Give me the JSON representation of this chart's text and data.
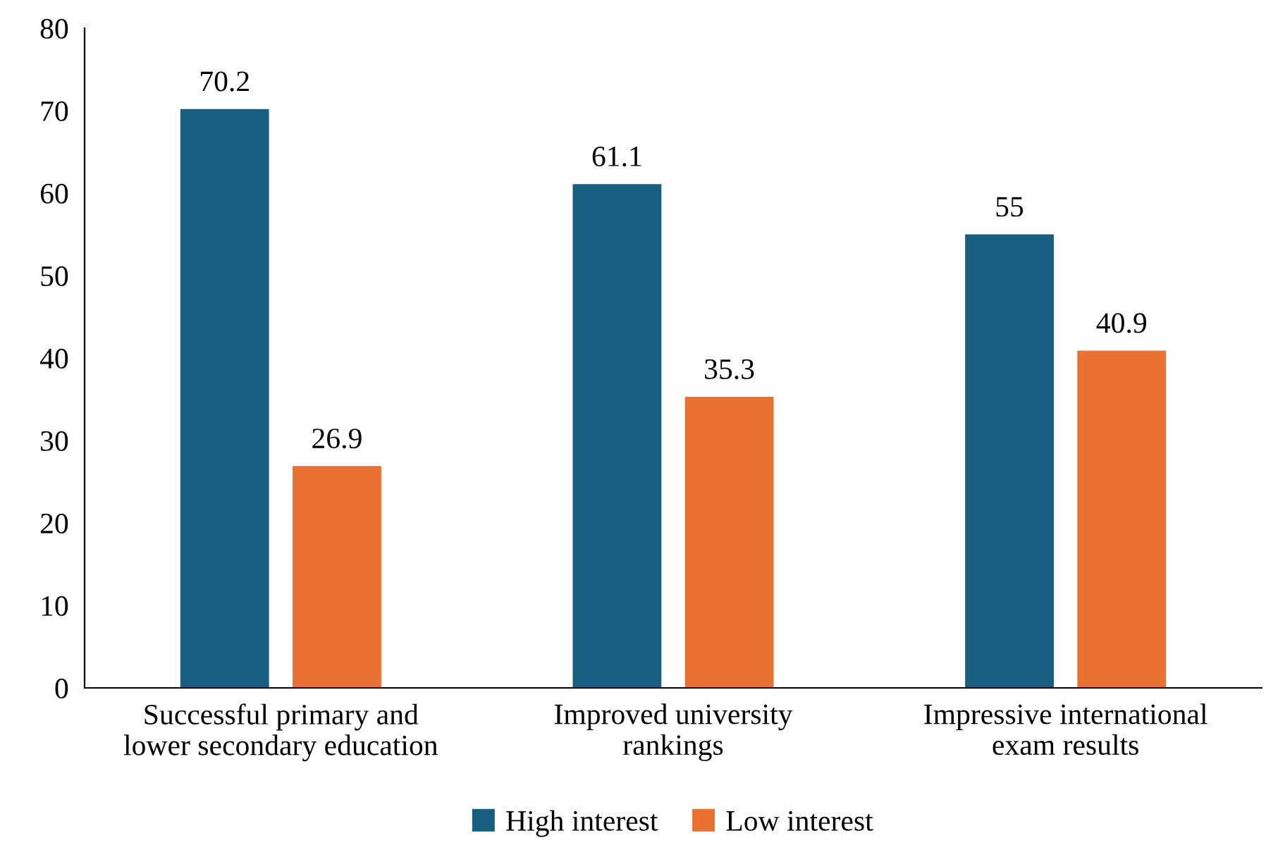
{
  "chart_data": {
    "type": "bar",
    "categories": [
      "Successful primary and\nlower secondary education",
      "Improved university\nrankings",
      "Impressive international\nexam results"
    ],
    "series": [
      {
        "name": "High interest",
        "color": "#175e80",
        "values": [
          70.2,
          61.1,
          55
        ]
      },
      {
        "name": "Low interest",
        "color": "#e97132",
        "values": [
          26.9,
          35.3,
          40.9
        ]
      }
    ],
    "ylim": [
      0,
      80
    ],
    "yticks": [
      0,
      10,
      20,
      30,
      40,
      50,
      60,
      70,
      80
    ],
    "data_labels": true,
    "grid": false,
    "legend": "bottom"
  }
}
